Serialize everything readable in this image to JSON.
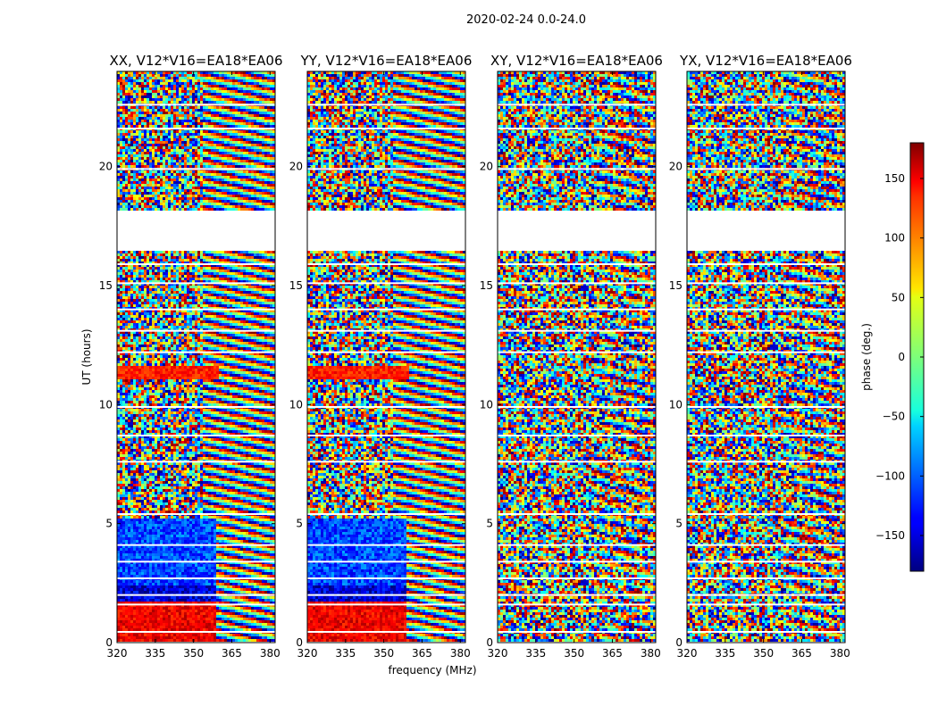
{
  "suptitle": "2020-02-24 0.0-24.0",
  "chart_data": {
    "type": "heatmap",
    "xlabel": "frequency (MHz)",
    "ylabel": "UT (hours)",
    "xlim": [
      320,
      382
    ],
    "ylim": [
      0,
      24
    ],
    "x_ticks": [
      "320",
      "335",
      "350",
      "365",
      "380"
    ],
    "y_ticks": [
      "0",
      "5",
      "10",
      "15",
      "20"
    ],
    "x_tick_values": [
      320,
      335,
      350,
      365,
      380
    ],
    "y_tick_values": [
      0,
      5,
      10,
      15,
      20
    ],
    "panels": [
      {
        "title": "XX, V12*V16=EA18*EA06",
        "pol": "XX"
      },
      {
        "title": "YY, V12*V16=EA18*EA06",
        "pol": "YY"
      },
      {
        "title": "XY, V12*V16=EA18*EA06",
        "pol": "XY"
      },
      {
        "title": "YX, V12*V16=EA18*EA06",
        "pol": "YX"
      }
    ],
    "data_gap_hours": [
      [
        16.5,
        18.1
      ]
    ],
    "colorbar": {
      "label": "phase (deg.)",
      "range": [
        -180,
        180
      ],
      "tick_values": [
        150,
        100,
        50,
        0,
        -50,
        -100,
        -150
      ],
      "tick_labels": [
        "150",
        "100",
        "50",
        "0",
        "−50",
        "−100",
        "−150"
      ],
      "colormap": "jet"
    }
  }
}
